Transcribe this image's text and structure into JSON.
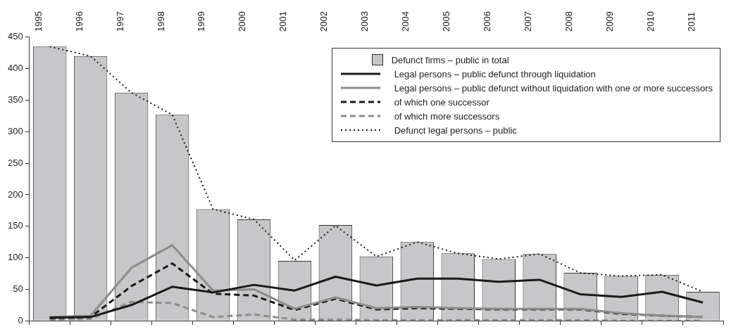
{
  "chart_data": {
    "type": "bar",
    "categories": [
      "1995",
      "1996",
      "1997",
      "1998",
      "1999",
      "2000",
      "2001",
      "2002",
      "2003",
      "2004",
      "2005",
      "2006",
      "2007",
      "2008",
      "2009",
      "2010",
      "2011"
    ],
    "ylim": [
      0,
      450
    ],
    "yticks": [
      0,
      50,
      100,
      150,
      200,
      250,
      300,
      350,
      400,
      450
    ],
    "grid": false,
    "legend": "top right",
    "marker": "none",
    "series": [
      {
        "name": "Defunct firms – public in total",
        "type": "bar",
        "color": "#c6c7c9",
        "values": [
          435,
          420,
          362,
          327,
          177,
          161,
          95,
          152,
          102,
          125,
          107,
          98,
          106,
          76,
          71,
          73,
          46
        ]
      },
      {
        "name": "Legal persons – public defunct through liquidation",
        "type": "line",
        "line_style": "solid",
        "color": "#1a1a1a",
        "values": [
          5,
          6,
          25,
          54,
          45,
          57,
          48,
          70,
          56,
          67,
          67,
          62,
          65,
          42,
          38,
          46,
          29
        ]
      },
      {
        "name": "Legal persons – public defunct without liquidation with one or more successors",
        "type": "line",
        "line_style": "solid",
        "color": "#8c8c8c",
        "values": [
          6,
          8,
          84,
          120,
          48,
          50,
          19,
          37,
          20,
          22,
          20,
          19,
          19,
          19,
          12,
          8,
          6
        ]
      },
      {
        "name": "of which one successor",
        "type": "line",
        "line_style": "dashed",
        "color": "#1a1a1a",
        "values": [
          4,
          6,
          55,
          91,
          43,
          40,
          17,
          35,
          18,
          20,
          19,
          18,
          18,
          18,
          11,
          8,
          6
        ]
      },
      {
        "name": "of which more successors",
        "type": "line",
        "line_style": "dashed",
        "color": "#8c8c8c",
        "values": [
          2,
          3,
          30,
          28,
          6,
          10,
          2,
          2,
          1,
          1,
          1,
          1,
          1,
          1,
          0,
          0,
          0
        ]
      },
      {
        "name": "Defunct legal persons – public",
        "type": "line",
        "line_style": "dotted",
        "color": "#1a1a1a",
        "values": [
          435,
          420,
          362,
          327,
          177,
          161,
          96,
          151,
          102,
          125,
          107,
          98,
          106,
          76,
          71,
          73,
          46
        ]
      }
    ]
  }
}
